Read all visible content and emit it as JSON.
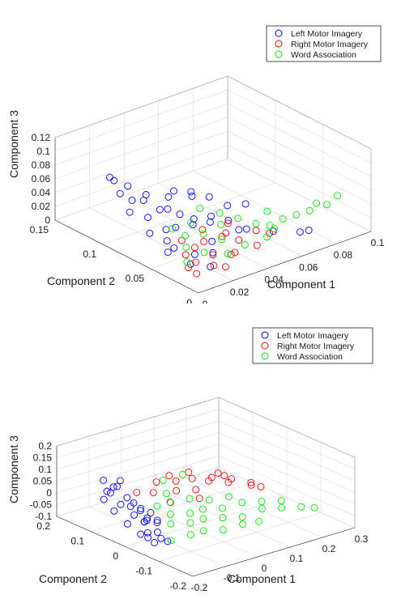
{
  "chart_data": [
    {
      "type": "scatter",
      "projection": "3d",
      "title": "",
      "xlabel": "Component 1",
      "ylabel": "Component 2",
      "zlabel": "Component 3",
      "xlim": [
        0,
        0.1
      ],
      "ylim": [
        0,
        0.15
      ],
      "zlim": [
        0,
        0.12
      ],
      "xticks": [
        "0",
        "0.02",
        "0.04",
        "0.06",
        "0.08",
        "0.1"
      ],
      "yticks": [
        "0",
        "0.05",
        "0.1",
        "0.15"
      ],
      "zticks": [
        "0",
        "0.02",
        "0.04",
        "0.06",
        "0.08",
        "0.1",
        "0.12"
      ],
      "grid": true,
      "legend_position": "top-right",
      "marker": "open-circle",
      "series": [
        {
          "name": "Left Motor Imagery",
          "color": "#0000ff",
          "points": [
            [
              0.012,
              0.11,
              0.075
            ],
            [
              0.015,
              0.12,
              0.07
            ],
            [
              0.01,
              0.1,
              0.065
            ],
            [
              0.02,
              0.11,
              0.06
            ],
            [
              0.018,
              0.09,
              0.055
            ],
            [
              0.025,
              0.1,
              0.05
            ],
            [
              0.03,
              0.08,
              0.065
            ],
            [
              0.035,
              0.07,
              0.06
            ],
            [
              0.04,
              0.08,
              0.055
            ],
            [
              0.022,
              0.08,
              0.045
            ],
            [
              0.028,
              0.07,
              0.04
            ],
            [
              0.015,
              0.08,
              0.04
            ],
            [
              0.01,
              0.09,
              0.045
            ],
            [
              0.02,
              0.06,
              0.035
            ],
            [
              0.03,
              0.06,
              0.03
            ],
            [
              0.04,
              0.06,
              0.025
            ],
            [
              0.035,
              0.05,
              0.045
            ],
            [
              0.025,
              0.05,
              0.05
            ],
            [
              0.045,
              0.05,
              0.03
            ],
            [
              0.05,
              0.04,
              0.02
            ],
            [
              0.06,
              0.03,
              0.015
            ],
            [
              0.07,
              0.02,
              0.012
            ],
            [
              0.075,
              0.02,
              0.01
            ],
            [
              0.02,
              0.07,
              0.025
            ],
            [
              0.015,
              0.06,
              0.02
            ],
            [
              0.01,
              0.05,
              0.015
            ],
            [
              0.02,
              0.04,
              0.01
            ],
            [
              0.03,
              0.04,
              0.02
            ],
            [
              0.025,
              0.03,
              0.015
            ],
            [
              0.012,
              0.03,
              0.01
            ],
            [
              0.018,
              0.02,
              0.008
            ],
            [
              0.008,
              0.04,
              0.03
            ],
            [
              0.005,
              0.06,
              0.04
            ],
            [
              0.04,
              0.03,
              0.035
            ],
            [
              0.05,
              0.06,
              0.04
            ],
            [
              0.045,
              0.07,
              0.05
            ],
            [
              0.055,
              0.05,
              0.045
            ],
            [
              0.032,
              0.09,
              0.03
            ],
            [
              0.038,
              0.1,
              0.035
            ],
            [
              0.028,
              0.12,
              0.025
            ]
          ]
        },
        {
          "name": "Right Motor Imagery",
          "color": "#ff0000",
          "points": [
            [
              0.01,
              0.02,
              0.005
            ],
            [
              0.015,
              0.03,
              0.01
            ],
            [
              0.02,
              0.02,
              0.008
            ],
            [
              0.025,
              0.03,
              0.012
            ],
            [
              0.03,
              0.02,
              0.015
            ],
            [
              0.035,
              0.025,
              0.01
            ],
            [
              0.04,
              0.03,
              0.02
            ],
            [
              0.045,
              0.02,
              0.015
            ],
            [
              0.02,
              0.04,
              0.02
            ],
            [
              0.028,
              0.045,
              0.018
            ],
            [
              0.018,
              0.05,
              0.025
            ],
            [
              0.012,
              0.035,
              0.02
            ],
            [
              0.008,
              0.025,
              0.012
            ],
            [
              0.03,
              0.05,
              0.03
            ],
            [
              0.038,
              0.04,
              0.025
            ],
            [
              0.05,
              0.03,
              0.025
            ],
            [
              0.055,
              0.025,
              0.02
            ],
            [
              0.024,
              0.015,
              0.006
            ],
            [
              0.033,
              0.035,
              0.028
            ],
            [
              0.042,
              0.045,
              0.032
            ]
          ]
        },
        {
          "name": "Word Association",
          "color": "#00ee00",
          "points": [
            [
              0.015,
              0.04,
              0.025
            ],
            [
              0.02,
              0.05,
              0.03
            ],
            [
              0.025,
              0.04,
              0.035
            ],
            [
              0.03,
              0.03,
              0.03
            ],
            [
              0.035,
              0.04,
              0.04
            ],
            [
              0.04,
              0.05,
              0.045
            ],
            [
              0.045,
              0.04,
              0.04
            ],
            [
              0.05,
              0.03,
              0.035
            ],
            [
              0.055,
              0.02,
              0.03
            ],
            [
              0.06,
              0.02,
              0.04
            ],
            [
              0.065,
              0.015,
              0.045
            ],
            [
              0.07,
              0.01,
              0.05
            ],
            [
              0.075,
              0.012,
              0.055
            ],
            [
              0.08,
              0.01,
              0.05
            ],
            [
              0.085,
              0.008,
              0.06
            ],
            [
              0.01,
              0.03,
              0.015
            ],
            [
              0.02,
              0.03,
              0.02
            ],
            [
              0.028,
              0.02,
              0.018
            ],
            [
              0.038,
              0.02,
              0.022
            ],
            [
              0.048,
              0.015,
              0.028
            ],
            [
              0.018,
              0.06,
              0.035
            ],
            [
              0.026,
              0.055,
              0.04
            ],
            [
              0.034,
              0.06,
              0.05
            ],
            [
              0.058,
              0.03,
              0.025
            ],
            [
              0.062,
              0.04,
              0.035
            ]
          ]
        }
      ]
    },
    {
      "type": "scatter",
      "projection": "3d",
      "title": "",
      "xlabel": "Component 1",
      "ylabel": "Component 2",
      "zlabel": "Component 3",
      "xlim": [
        -0.2,
        0.3
      ],
      "ylim": [
        -0.2,
        0.2
      ],
      "zlim": [
        -0.1,
        0.2
      ],
      "xticks": [
        "-0.2",
        "-0.1",
        "0",
        "0.1",
        "0.2",
        "0.3"
      ],
      "yticks": [
        "-0.2",
        "-0.1",
        "0",
        "0.1",
        "0.2"
      ],
      "zticks": [
        "-0.1",
        "-0.05",
        "0",
        "0.05",
        "0.1",
        "0.15",
        "0.2"
      ],
      "grid": true,
      "legend_position": "top-right",
      "marker": "open-circle",
      "series": [
        {
          "name": "Left Motor Imagery",
          "color": "#0000ff",
          "points": [
            [
              -0.15,
              0.1,
              0.05
            ],
            [
              -0.14,
              0.12,
              0.08
            ],
            [
              -0.13,
              0.08,
              0.1
            ],
            [
              -0.16,
              0.05,
              0.03
            ],
            [
              -0.15,
              0.02,
              0.0
            ],
            [
              -0.14,
              0.0,
              -0.02
            ],
            [
              -0.15,
              -0.02,
              -0.05
            ],
            [
              -0.13,
              -0.04,
              -0.07
            ],
            [
              -0.12,
              -0.05,
              -0.08
            ],
            [
              -0.14,
              0.04,
              0.02
            ],
            [
              -0.13,
              0.06,
              0.04
            ],
            [
              -0.12,
              0.03,
              0.0
            ],
            [
              -0.11,
              0.02,
              -0.03
            ],
            [
              -0.16,
              0.08,
              0.06
            ],
            [
              -0.17,
              0.06,
              0.0
            ],
            [
              -0.16,
              0.03,
              -0.04
            ],
            [
              -0.14,
              -0.03,
              -0.09
            ],
            [
              -0.12,
              -0.02,
              -0.06
            ],
            [
              -0.1,
              0.0,
              -0.04
            ],
            [
              -0.15,
              0.07,
              0.09
            ],
            [
              -0.13,
              0.1,
              0.06
            ],
            [
              -0.12,
              0.05,
              0.02
            ],
            [
              -0.11,
              -0.01,
              -0.02
            ],
            [
              -0.14,
              0.01,
              0.03
            ],
            [
              -0.15,
              -0.01,
              -0.01
            ],
            [
              -0.16,
              -0.03,
              -0.06
            ],
            [
              -0.13,
              0.02,
              -0.09
            ],
            [
              -0.12,
              0.0,
              0.01
            ],
            [
              -0.1,
              0.03,
              -0.05
            ],
            [
              -0.17,
              0.09,
              0.03
            ]
          ]
        },
        {
          "name": "Right Motor Imagery",
          "color": "#ff0000",
          "points": [
            [
              -0.05,
              0.05,
              0.08
            ],
            [
              0.0,
              0.06,
              0.08
            ],
            [
              0.05,
              0.04,
              0.06
            ],
            [
              0.1,
              0.03,
              0.05
            ],
            [
              0.15,
              0.02,
              0.03
            ],
            [
              0.2,
              0.01,
              0.0
            ],
            [
              0.22,
              0.0,
              -0.02
            ],
            [
              -0.08,
              0.03,
              0.06
            ],
            [
              -0.02,
              0.02,
              0.05
            ],
            [
              0.03,
              0.01,
              0.04
            ],
            [
              0.08,
              0.02,
              0.05
            ],
            [
              0.12,
              0.0,
              0.04
            ],
            [
              0.18,
              -0.01,
              0.01
            ],
            [
              -0.1,
              0.06,
              0.05
            ],
            [
              0.0,
              0.04,
              0.07
            ],
            [
              0.06,
              0.06,
              0.07
            ],
            [
              0.13,
              0.04,
              0.05
            ],
            [
              0.16,
              0.05,
              0.02
            ],
            [
              -0.06,
              0.0,
              0.03
            ],
            [
              0.02,
              -0.01,
              0.02
            ]
          ]
        },
        {
          "name": "Word Association",
          "color": "#00ee00",
          "points": [
            [
              -0.1,
              -0.04,
              -0.02
            ],
            [
              -0.05,
              -0.05,
              -0.03
            ],
            [
              0.0,
              -0.04,
              -0.04
            ],
            [
              0.05,
              -0.05,
              -0.05
            ],
            [
              0.1,
              -0.06,
              -0.06
            ],
            [
              0.15,
              -0.07,
              -0.04
            ],
            [
              0.2,
              -0.08,
              -0.05
            ],
            [
              0.25,
              -0.09,
              -0.06
            ],
            [
              -0.08,
              -0.02,
              0.0
            ],
            [
              -0.03,
              -0.03,
              -0.01
            ],
            [
              0.02,
              -0.02,
              -0.02
            ],
            [
              0.07,
              -0.03,
              -0.03
            ],
            [
              0.12,
              -0.04,
              -0.02
            ],
            [
              0.17,
              -0.05,
              -0.03
            ],
            [
              0.22,
              -0.06,
              -0.04
            ],
            [
              -0.1,
              0.0,
              0.03
            ],
            [
              -0.05,
              0.02,
              0.05
            ],
            [
              0.0,
              0.0,
              0.02
            ],
            [
              0.05,
              -0.01,
              0.0
            ],
            [
              0.1,
              -0.02,
              0.0
            ],
            [
              -0.12,
              -0.06,
              -0.07
            ],
            [
              -0.07,
              -0.07,
              -0.06
            ],
            [
              -0.02,
              -0.06,
              -0.07
            ],
            [
              0.03,
              -0.07,
              -0.08
            ],
            [
              0.08,
              -0.08,
              -0.07
            ],
            [
              0.13,
              -0.08,
              -0.08
            ],
            [
              -0.09,
              -0.03,
              0.06
            ],
            [
              -0.04,
              0.04,
              0.09
            ],
            [
              0.01,
              0.03,
              0.1
            ],
            [
              0.28,
              -0.1,
              -0.07
            ]
          ]
        }
      ]
    }
  ]
}
